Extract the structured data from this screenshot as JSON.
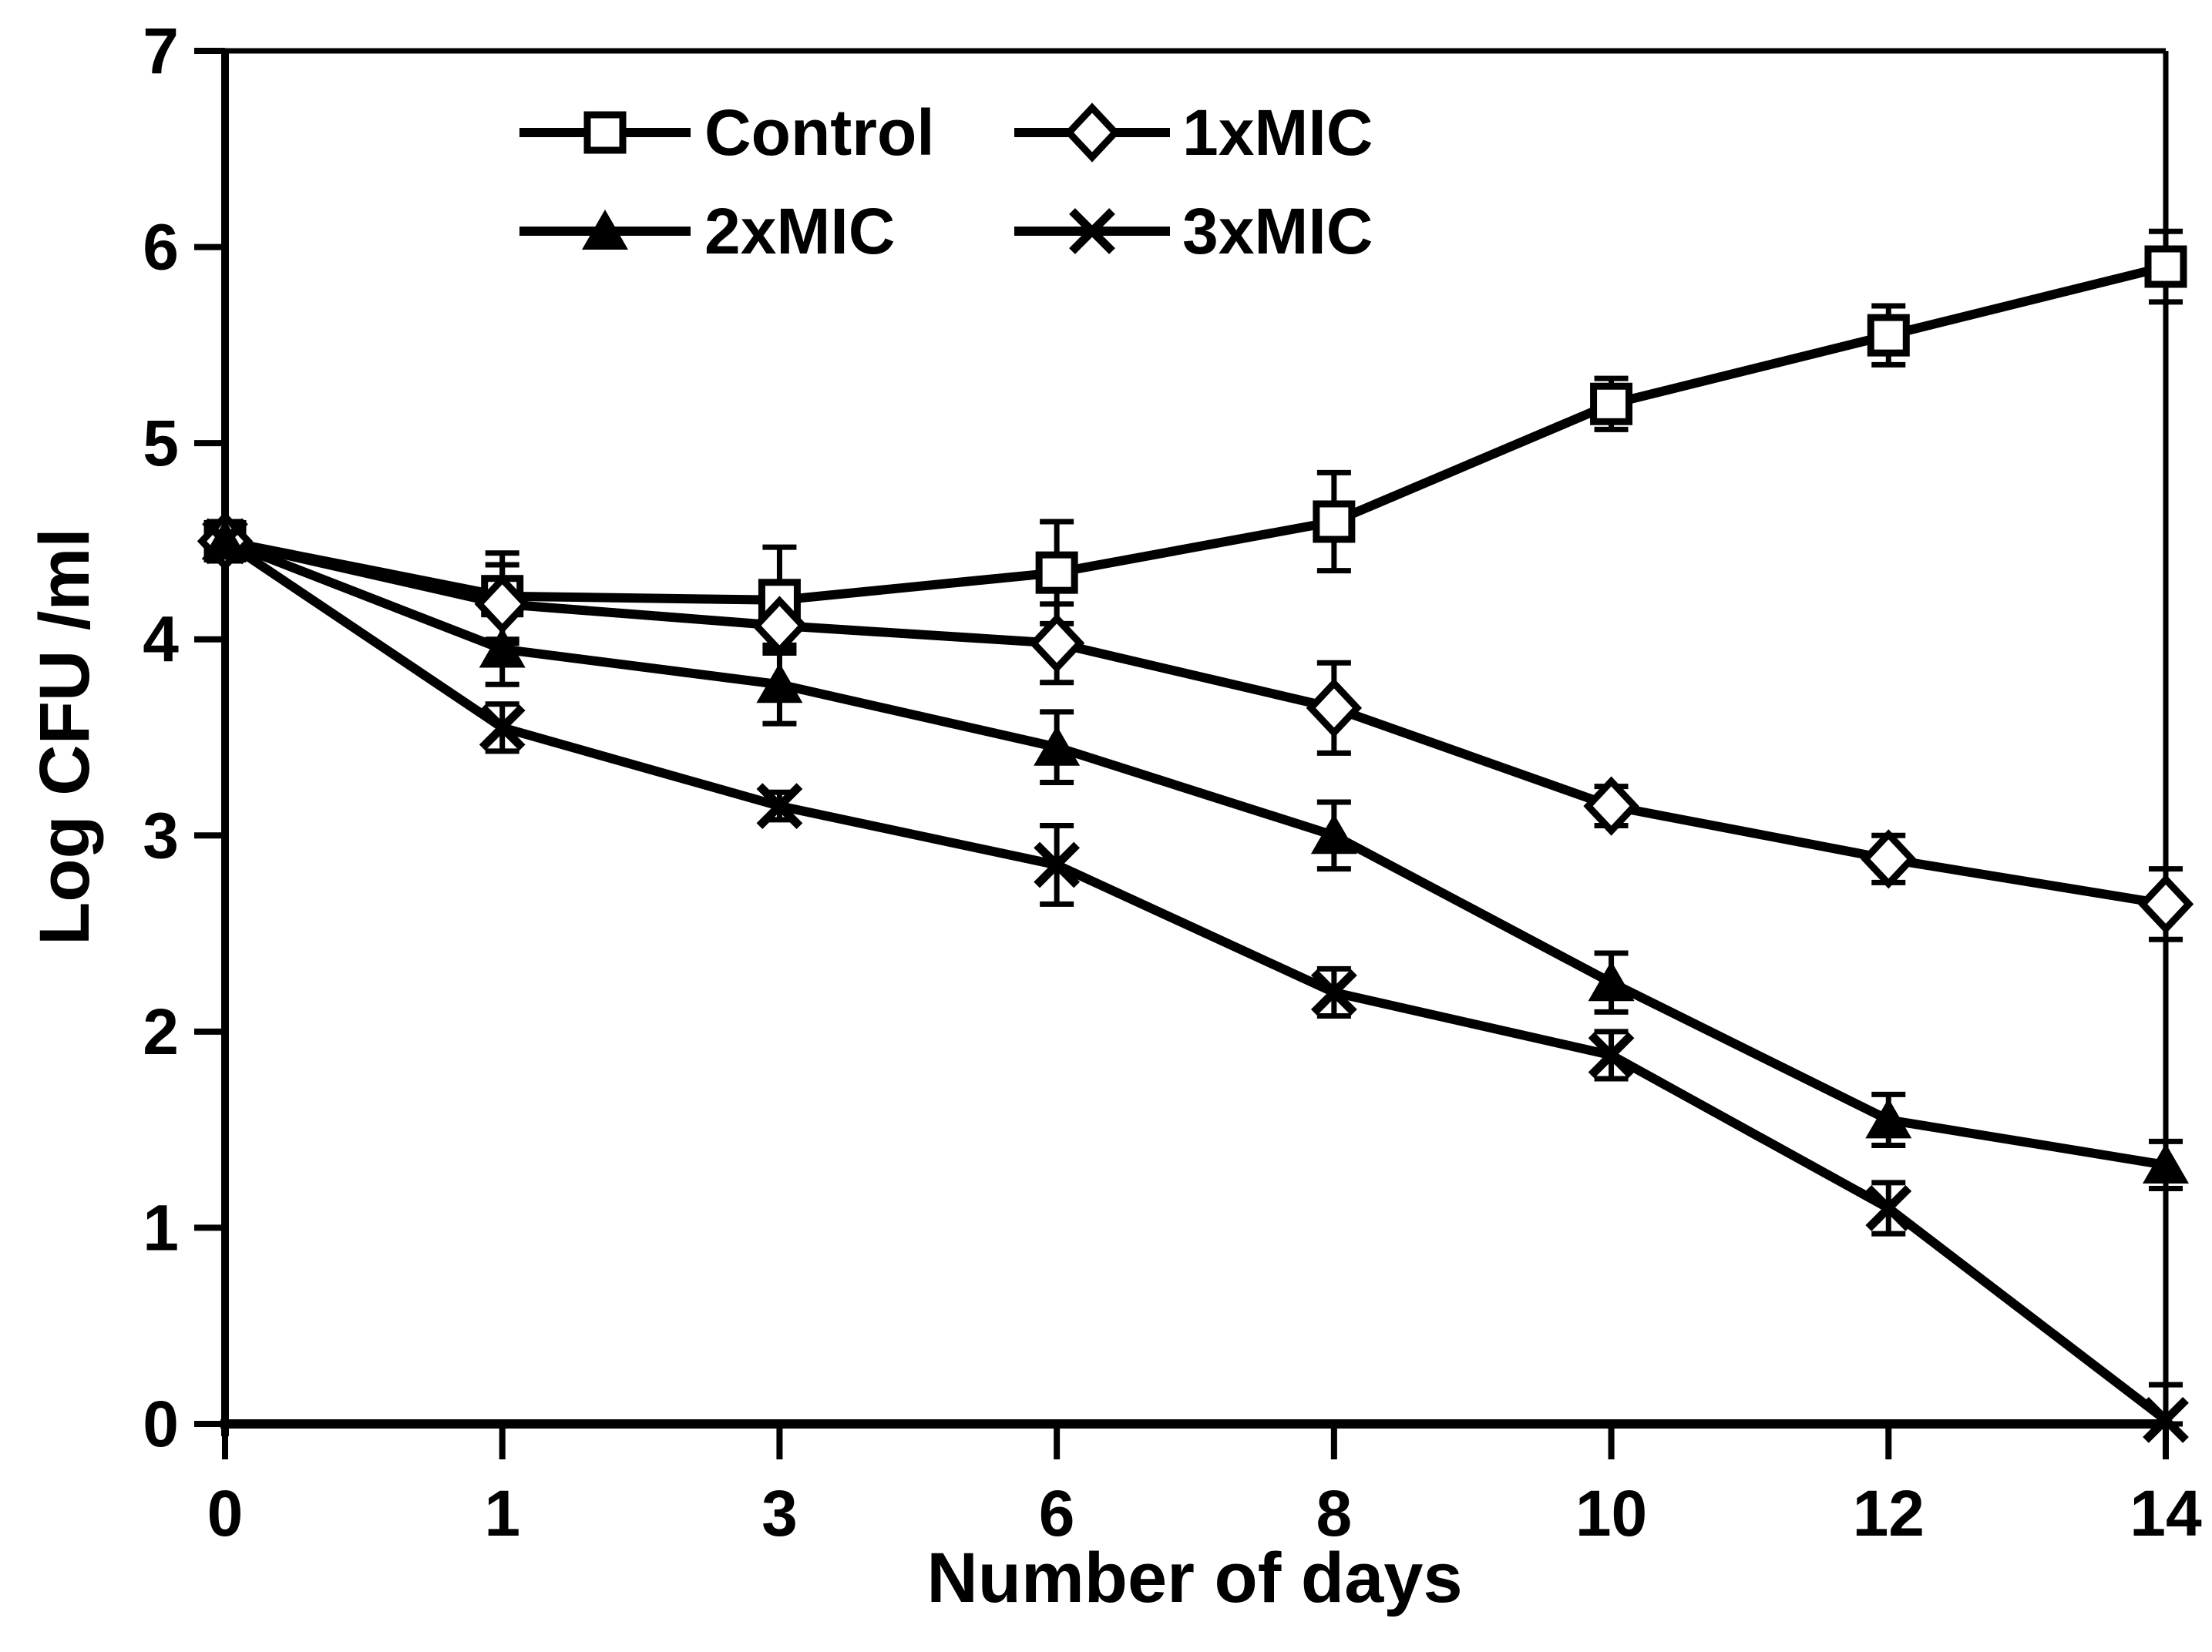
{
  "figure": {
    "background": "#ffffff",
    "ink_color": "#000000"
  },
  "chart_data": {
    "type": "line",
    "title": "",
    "xlabel": "Number of days",
    "ylabel": "Log CFU /ml",
    "categories": [
      "0",
      "1",
      "3",
      "6",
      "8",
      "10",
      "12",
      "14"
    ],
    "x_values": [
      0,
      1,
      3,
      6,
      8,
      10,
      12,
      14
    ],
    "ylim": [
      0,
      7
    ],
    "yticks": [
      "0",
      "1",
      "2",
      "3",
      "4",
      "5",
      "6",
      "7"
    ],
    "grid": false,
    "error_bars": true,
    "legend_position": "top-inside-two-column",
    "series": [
      {
        "name": "Control",
        "marker": "open-square",
        "color": "#000000",
        "values": [
          4.5,
          4.22,
          4.2,
          4.34,
          4.6,
          5.2,
          5.55,
          5.9
        ],
        "errors": [
          0.1,
          0.22,
          0.27,
          0.26,
          0.25,
          0.13,
          0.15,
          0.18
        ]
      },
      {
        "name": "1xMIC",
        "marker": "open-diamond",
        "color": "#000000",
        "values": [
          4.5,
          4.18,
          4.07,
          3.98,
          3.65,
          3.15,
          2.88,
          2.65
        ],
        "errors": [
          0.1,
          0.2,
          0.12,
          0.2,
          0.23,
          0.1,
          0.12,
          0.18
        ]
      },
      {
        "name": "2xMIC",
        "marker": "filled-triangle",
        "color": "#000000",
        "values": [
          4.5,
          3.95,
          3.77,
          3.45,
          3.0,
          2.25,
          1.55,
          1.32
        ],
        "errors": [
          0.1,
          0.18,
          0.2,
          0.18,
          0.17,
          0.15,
          0.13,
          0.12
        ]
      },
      {
        "name": "3xMIC",
        "marker": "x-cross",
        "color": "#000000",
        "values": [
          4.5,
          3.55,
          3.15,
          2.85,
          2.2,
          1.88,
          1.1,
          0.02
        ],
        "errors": [
          0.1,
          0.12,
          0.07,
          0.2,
          0.12,
          0.12,
          0.13,
          0.18
        ]
      }
    ]
  }
}
